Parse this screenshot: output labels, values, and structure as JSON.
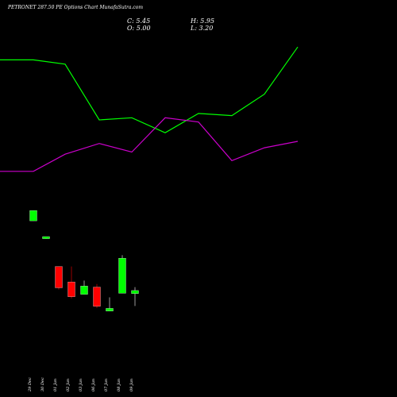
{
  "header": {
    "title": "PETRONET 287.50 PE Options Chart MunafaSutra.com",
    "close": "C: 5.45",
    "open": "O: 5.00",
    "high": "H: 5.95",
    "low": "L: 3.20"
  },
  "colors": {
    "background": "#000000",
    "up": "#00ff00",
    "down": "#ff0000",
    "line_green": "#00ff00",
    "line_magenta": "#cc00cc"
  },
  "chart_data": [
    {
      "type": "line",
      "x": [
        "29 Dec",
        "30 Dec",
        "01 Jan",
        "02 Jan",
        "03 Jan",
        "06 Jan",
        "07 Jan",
        "08 Jan",
        "09 Jan"
      ],
      "series": [
        {
          "values": [
            8.9,
            8.8,
            7.5,
            7.55,
            7.2,
            7.65,
            7.6,
            8.1,
            9.2
          ]
        },
        {
          "values": [
            6.3,
            6.7,
            6.95,
            6.75,
            7.55,
            7.45,
            6.55,
            6.85,
            7.0
          ]
        }
      ]
    },
    {
      "type": "candlestick",
      "categories": [
        "29 Dec",
        "30 Dec",
        "01 Jan",
        "02 Jan",
        "03 Jan",
        "06 Jan",
        "07 Jan",
        "08 Jan",
        "09 Jan"
      ],
      "ohlc": [
        {
          "open": 15.6,
          "high": 17.1,
          "low": 15.6,
          "close": 17.1
        },
        {
          "open": 13.0,
          "high": 13.3,
          "low": 13.0,
          "close": 13.3
        },
        {
          "open": 8.95,
          "high": 8.95,
          "low": 5.6,
          "close": 5.85
        },
        {
          "open": 6.7,
          "high": 8.95,
          "low": 4.3,
          "close": 4.55
        },
        {
          "open": 4.9,
          "high": 6.9,
          "low": 4.9,
          "close": 6.1
        },
        {
          "open": 5.95,
          "high": 6.4,
          "low": 2.9,
          "close": 3.15
        },
        {
          "open": 2.45,
          "high": 4.45,
          "low": 2.45,
          "close": 2.85
        },
        {
          "open": 5.05,
          "high": 10.6,
          "low": 5.05,
          "close": 10.15
        },
        {
          "open": 5.0,
          "high": 5.95,
          "low": 3.2,
          "close": 5.45
        }
      ]
    }
  ]
}
